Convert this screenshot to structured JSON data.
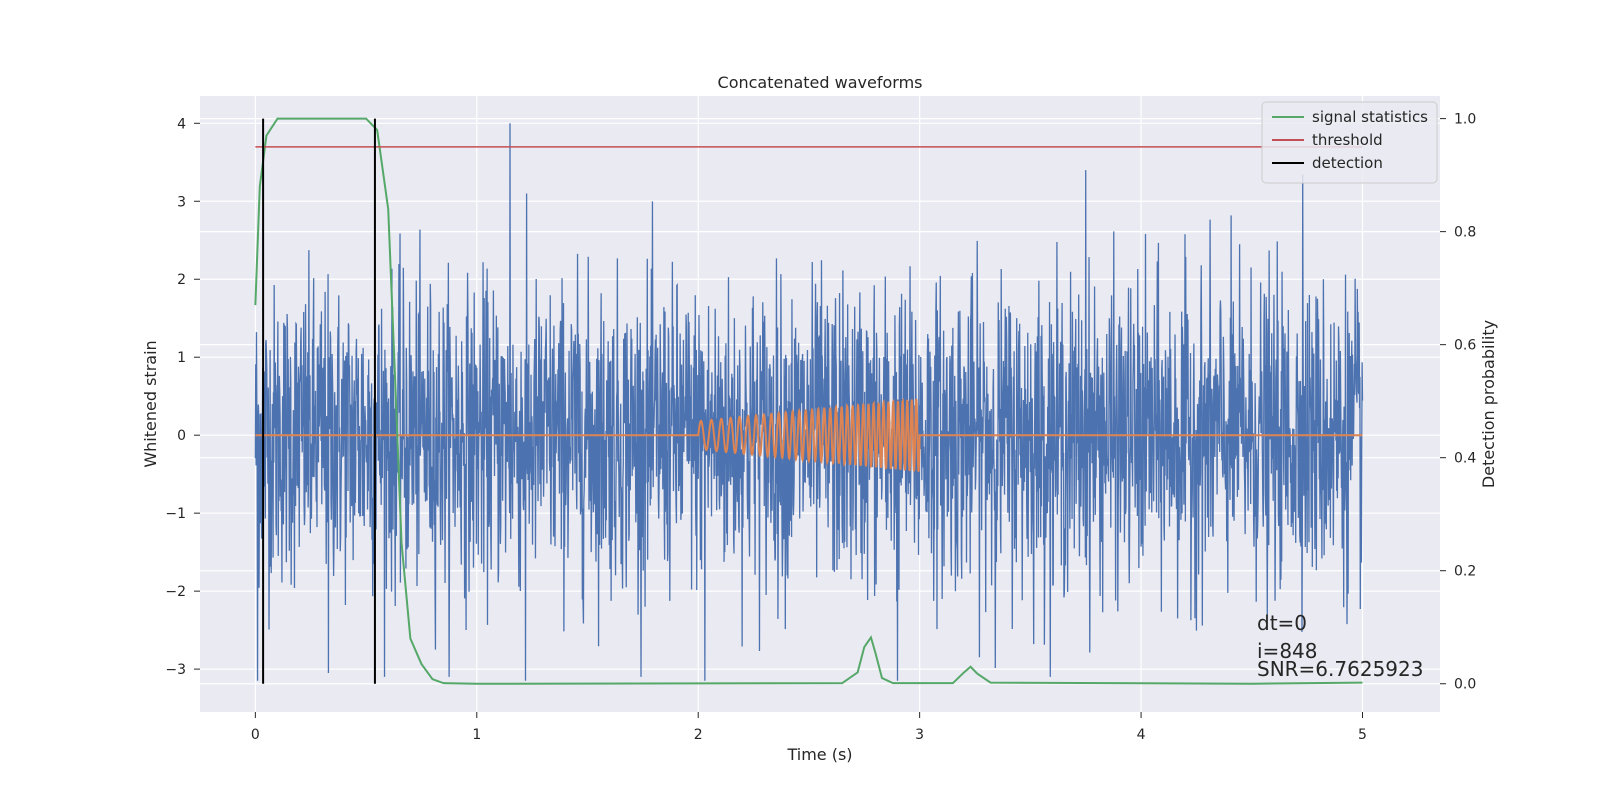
{
  "chart_data": {
    "type": "line",
    "title": "Concatenated waveforms",
    "xlabel": "Time (s)",
    "ylabel": "Whitened strain",
    "y2label": "Detection probability",
    "xlim": [
      -0.25,
      5.35
    ],
    "ylim": [
      -3.55,
      4.35
    ],
    "y2lim": [
      -0.05,
      1.04
    ],
    "grid": true,
    "legend_position": "top-right",
    "x_ticks": [
      "0",
      "1",
      "2",
      "3",
      "4",
      "5"
    ],
    "y_ticks": [
      "4",
      "3",
      "2",
      "1",
      "0",
      "−1",
      "−2",
      "−3"
    ],
    "y2_ticks": [
      "1.0",
      "0.8",
      "0.6",
      "0.4",
      "0.2",
      "0.0"
    ],
    "series": [
      {
        "name": "",
        "axis": "left",
        "color": "#4c72b0",
        "description_kind": "whitened noise",
        "x_range": [
          0,
          5
        ],
        "approx_amplitude": 1.0,
        "peak_points": [
          [
            0.01,
            2.35
          ],
          [
            0.01,
            -3.15
          ],
          [
            1.15,
            4.0
          ],
          [
            1.22,
            -3.15
          ],
          [
            3.75,
            3.4
          ],
          [
            4.73,
            3.35
          ],
          [
            0.33,
            -3.05
          ],
          [
            2.03,
            -3.15
          ],
          [
            2.9,
            -3.15
          ]
        ]
      },
      {
        "name": "",
        "axis": "left",
        "color": "#dd8452",
        "description_kind": "chirp injection",
        "start": 2.0,
        "end": 3.0,
        "amplitude_start": 0.18,
        "amplitude_end": 0.47,
        "baseline": 0
      },
      {
        "name": "signal statistics",
        "axis": "right",
        "color": "#55a868",
        "points": [
          [
            0,
            0.67
          ],
          [
            0.02,
            0.88
          ],
          [
            0.05,
            0.97
          ],
          [
            0.1,
            1.0
          ],
          [
            0.5,
            1.0
          ],
          [
            0.55,
            0.98
          ],
          [
            0.6,
            0.84
          ],
          [
            0.63,
            0.55
          ],
          [
            0.66,
            0.25
          ],
          [
            0.7,
            0.08
          ],
          [
            0.75,
            0.035
          ],
          [
            0.8,
            0.008
          ],
          [
            0.85,
            0.001
          ],
          [
            1.0,
            0.0
          ],
          [
            2.65,
            0.001
          ],
          [
            2.72,
            0.02
          ],
          [
            2.75,
            0.065
          ],
          [
            2.78,
            0.082
          ],
          [
            2.8,
            0.055
          ],
          [
            2.83,
            0.01
          ],
          [
            2.88,
            0.001
          ],
          [
            3.15,
            0.001
          ],
          [
            3.2,
            0.02
          ],
          [
            3.23,
            0.03
          ],
          [
            3.26,
            0.018
          ],
          [
            3.32,
            0.002
          ],
          [
            4.5,
            0.0
          ],
          [
            5.0,
            0.002
          ]
        ]
      },
      {
        "name": "threshold",
        "axis": "right",
        "color": "#c44e52",
        "value": 0.95,
        "x_range": [
          0,
          5
        ]
      },
      {
        "name": "detection",
        "axis": "right",
        "color": "#000000",
        "x_values": [
          0.035,
          0.54
        ],
        "y_range": [
          0,
          1.0
        ]
      }
    ],
    "annotations": [
      "dt=0",
      "i=848",
      "SNR=6.7625923"
    ]
  }
}
